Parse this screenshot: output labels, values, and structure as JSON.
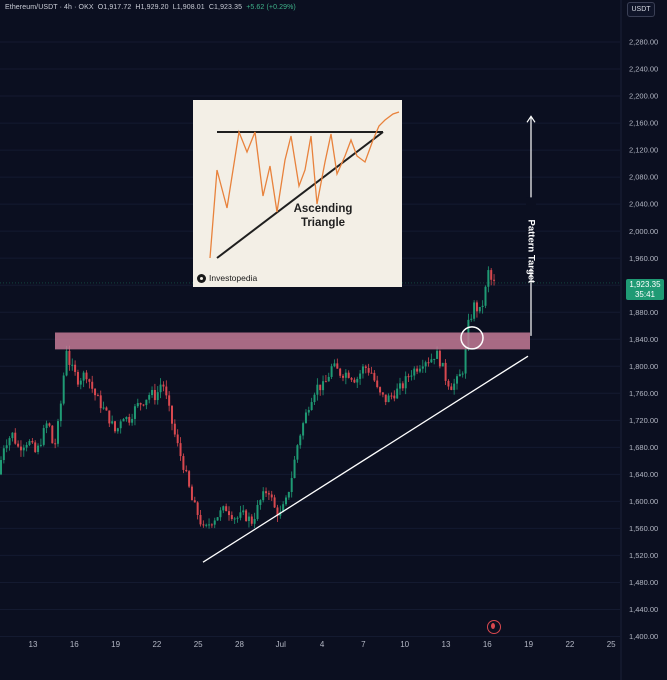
{
  "header": {
    "symbol": "Ethereum/USDT · 4h · OKX",
    "open": "O1,917.72",
    "high": "H1,929.20",
    "low": "L1,908.01",
    "close": "C1,923.35",
    "change": "+5.62 (+0.29%)"
  },
  "unit_button": "USDT",
  "last_price": {
    "price": "1,923.35",
    "countdown": "35:41",
    "value": 1923.35
  },
  "inset": {
    "title_line1": "Ascending",
    "title_line2": "Triangle",
    "brand": "Investopedia"
  },
  "annotation": {
    "target_label": "Pattern Target"
  },
  "colors": {
    "background": "#0b0f20",
    "bull": "#1f9a74",
    "bear": "#d8484f",
    "resistance_zone": "#c47a97",
    "trendline": "#ffffff"
  },
  "chart_data": {
    "type": "candlestick",
    "title": "",
    "y_axis": {
      "min": 1360,
      "max": 2320,
      "ticks": [
        1400,
        1440,
        1480,
        1520,
        1560,
        1600,
        1640,
        1680,
        1720,
        1760,
        1800,
        1840,
        1880,
        1920,
        1960,
        2000,
        2040,
        2080,
        2120,
        2160,
        2200,
        2240,
        2280
      ],
      "tick_labels": [
        "1,400.00",
        "1,440.00",
        "1,480.00",
        "1,520.00",
        "1,560.00",
        "1,600.00",
        "1,640.00",
        "1,680.00",
        "1,720.00",
        "1,760.00",
        "1,800.00",
        "1,840.00",
        "1,880.00",
        "1,920.00",
        "1,960.00",
        "2,000.00",
        "2,040.00",
        "2,080.00",
        "2,120.00",
        "2,160.00",
        "2,200.00",
        "2,240.00",
        "2,280.00"
      ]
    },
    "x_axis": {
      "labels": [
        "13",
        "16",
        "19",
        "22",
        "25",
        "28",
        "Jul",
        "4",
        "7",
        "10",
        "13",
        "16",
        "19",
        "22",
        "25"
      ]
    },
    "keypoints": [
      [
        0,
        1640
      ],
      [
        6,
        1685
      ],
      [
        14,
        1700
      ],
      [
        20,
        1680
      ],
      [
        30,
        1690
      ],
      [
        38,
        1670
      ],
      [
        45,
        1700
      ],
      [
        50,
        1720
      ],
      [
        55,
        1680
      ],
      [
        58,
        1690
      ],
      [
        64,
        1760
      ],
      [
        68,
        1830
      ],
      [
        72,
        1800
      ],
      [
        80,
        1780
      ],
      [
        88,
        1790
      ],
      [
        96,
        1760
      ],
      [
        104,
        1740
      ],
      [
        112,
        1720
      ],
      [
        118,
        1700
      ],
      [
        124,
        1730
      ],
      [
        130,
        1720
      ],
      [
        138,
        1740
      ],
      [
        146,
        1750
      ],
      [
        152,
        1760
      ],
      [
        158,
        1755
      ],
      [
        164,
        1780
      ],
      [
        170,
        1740
      ],
      [
        178,
        1690
      ],
      [
        186,
        1650
      ],
      [
        194,
        1600
      ],
      [
        200,
        1580
      ],
      [
        206,
        1555
      ],
      [
        212,
        1570
      ],
      [
        220,
        1580
      ],
      [
        228,
        1590
      ],
      [
        238,
        1575
      ],
      [
        246,
        1580
      ],
      [
        254,
        1570
      ],
      [
        262,
        1600
      ],
      [
        270,
        1620
      ],
      [
        276,
        1590
      ],
      [
        282,
        1580
      ],
      [
        288,
        1600
      ],
      [
        294,
        1640
      ],
      [
        300,
        1690
      ],
      [
        306,
        1720
      ],
      [
        312,
        1750
      ],
      [
        318,
        1770
      ],
      [
        326,
        1770
      ],
      [
        334,
        1800
      ],
      [
        342,
        1790
      ],
      [
        350,
        1790
      ],
      [
        358,
        1780
      ],
      [
        366,
        1800
      ],
      [
        374,
        1790
      ],
      [
        380,
        1760
      ],
      [
        388,
        1750
      ],
      [
        396,
        1760
      ],
      [
        404,
        1770
      ],
      [
        412,
        1790
      ],
      [
        420,
        1800
      ],
      [
        426,
        1810
      ],
      [
        432,
        1810
      ],
      [
        438,
        1820
      ],
      [
        444,
        1800
      ],
      [
        448,
        1780
      ],
      [
        454,
        1770
      ],
      [
        460,
        1780
      ],
      [
        466,
        1800
      ],
      [
        470,
        1860
      ],
      [
        476,
        1890
      ],
      [
        482,
        1880
      ],
      [
        486,
        1900
      ],
      [
        490,
        1940
      ],
      [
        494,
        1923
      ]
    ],
    "resistance_zone": {
      "low": 1825,
      "high": 1850
    },
    "trendline": {
      "from": {
        "x": 203,
        "y": 1510
      },
      "to": {
        "x": 528,
        "y": 1815
      }
    },
    "breakout_point": {
      "x": 472,
      "y": 1842
    },
    "target": {
      "from": 1845,
      "to": 2170
    }
  }
}
